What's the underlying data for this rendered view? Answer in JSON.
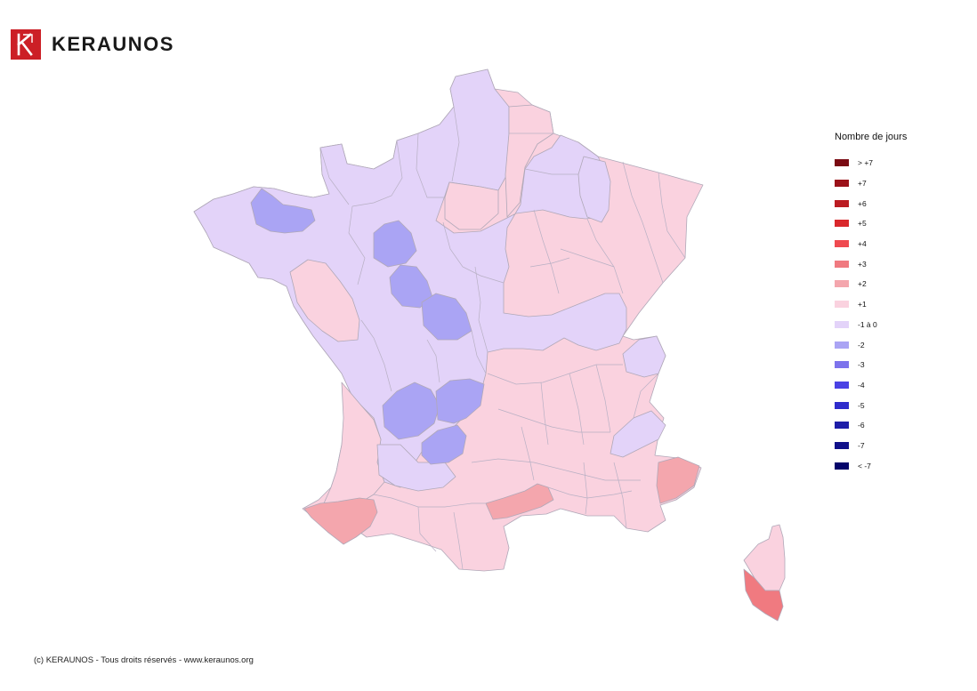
{
  "brand": {
    "name": "KERAUNOS"
  },
  "legend": {
    "title": "Nombre de jours",
    "items": [
      {
        "label": "> +7",
        "color": "#7a0a12"
      },
      {
        "label": "+7",
        "color": "#9b1219"
      },
      {
        "label": "+6",
        "color": "#bb1c22"
      },
      {
        "label": "+5",
        "color": "#d9282c"
      },
      {
        "label": "+4",
        "color": "#ef4a50"
      },
      {
        "label": "+3",
        "color": "#f07a80"
      },
      {
        "label": "+2",
        "color": "#f4a6ad"
      },
      {
        "label": "+1",
        "color": "#fad2df"
      },
      {
        "label": "-1 à 0",
        "color": "#e3d3f9"
      },
      {
        "label": "-2",
        "color": "#aaa4f4"
      },
      {
        "label": "-3",
        "color": "#7d73ec"
      },
      {
        "label": "-4",
        "color": "#4a42e4"
      },
      {
        "label": "-5",
        "color": "#2f2ccc"
      },
      {
        "label": "-6",
        "color": "#1e1ea8"
      },
      {
        "label": "-7",
        "color": "#10108a"
      },
      {
        "label": "< -7",
        "color": "#04046a"
      }
    ]
  },
  "footer": {
    "copyright": "(c) KERAUNOS - Tous droits réservés - www.keraunos.org"
  }
}
